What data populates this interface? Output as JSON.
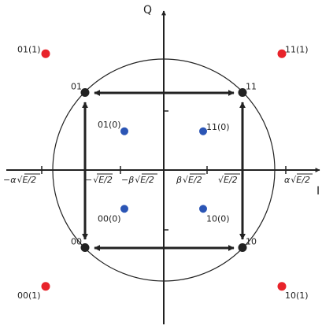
{
  "axes": {
    "horizontal_label": "I",
    "vertical_label": "Q"
  },
  "tick_labels": {
    "neg_alpha": {
      "prefix": "−α",
      "radicand": "E/2"
    },
    "neg_one": {
      "prefix": "−",
      "radicand": "E/2"
    },
    "neg_beta": {
      "prefix": "−β",
      "radicand": "E/2"
    },
    "pos_beta": {
      "prefix": "β",
      "radicand": "E/2"
    },
    "pos_one": {
      "prefix": "",
      "radicand": "E/2"
    },
    "pos_alpha": {
      "prefix": "α",
      "radicand": "E/2"
    }
  },
  "points": {
    "qpsk": [
      {
        "label": "11",
        "i": 1,
        "q": 1
      },
      {
        "label": "01",
        "i": -1,
        "q": 1
      },
      {
        "label": "00",
        "i": -1,
        "q": -1
      },
      {
        "label": "10",
        "i": 1,
        "q": -1
      }
    ],
    "inner": [
      {
        "label": "11(0)",
        "i": 0.5,
        "q": 0.5
      },
      {
        "label": "01(0)",
        "i": -0.5,
        "q": 0.5
      },
      {
        "label": "00(0)",
        "i": -0.5,
        "q": -0.5
      },
      {
        "label": "10(0)",
        "i": 0.5,
        "q": -0.5
      }
    ],
    "outer": [
      {
        "label": "11(1)",
        "i": 1.5,
        "q": 1.5
      },
      {
        "label": "01(1)",
        "i": -1.5,
        "q": 1.5
      },
      {
        "label": "00(1)",
        "i": -1.5,
        "q": -1.5
      },
      {
        "label": "10(1)",
        "i": 1.5,
        "q": -1.5
      }
    ]
  },
  "colors": {
    "qpsk": "#222222",
    "inner": "#2b55b5",
    "outer": "#e8232a",
    "lines": "#222222"
  }
}
